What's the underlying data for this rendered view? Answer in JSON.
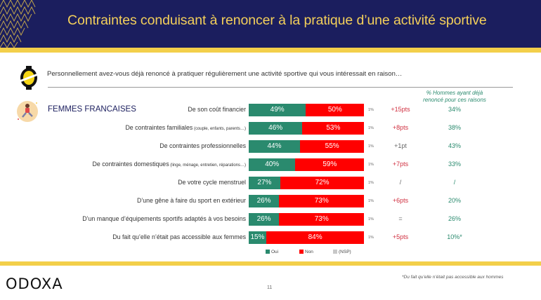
{
  "header": {
    "title": "Contraintes conduisant à renoncer à la pratique d’une activité sportive",
    "pattern_icon": "herringbone-pattern"
  },
  "question": {
    "icon": "odoxa-logo-icon",
    "text": "Personnellement avez-vous déjà renoncé à pratiquer régulièrement une activité sportive qui vous intéressait en raison…"
  },
  "group": {
    "icon": "woman-running-icon",
    "title": "FEMMES FRANCAISES"
  },
  "men_column_header": {
    "line1": "% Hommes ayant déjà",
    "line2": "renoncé pour ces raisons"
  },
  "colors": {
    "oui": "#2a8a6e",
    "non": "#ff0000",
    "nsp": "#c8c8c8",
    "diff_positive": "#d03040",
    "diff_neutral": "#666666",
    "men": "#2a8a6e",
    "navy": "#1b1e5e",
    "gold": "#f3cf4a"
  },
  "chart_data": {
    "type": "bar",
    "orientation": "horizontal-stacked",
    "title": "Contraintes conduisant à renoncer à la pratique d’une activité sportive",
    "subtitle": "FEMMES FRANCAISES",
    "categories": [
      {
        "main": "De son coût financier",
        "detail": ""
      },
      {
        "main": "De contraintes familiales",
        "detail": "(couple, enfants, parents…)"
      },
      {
        "main": "De contraintes professionnelles",
        "detail": ""
      },
      {
        "main": "De contraintes domestiques",
        "detail": "(linge, ménage, entretien, réparations…)"
      },
      {
        "main": "De votre cycle menstruel",
        "detail": ""
      },
      {
        "main": "D’une gêne à faire du sport en extérieur",
        "detail": ""
      },
      {
        "main": "D’un manque d’équipements sportifs adaptés à vos besoins",
        "detail": ""
      },
      {
        "main": "Du fait qu’elle n’était pas accessible aux femmes",
        "detail": ""
      }
    ],
    "series": [
      {
        "name": "Oui",
        "values": [
          49,
          46,
          44,
          40,
          27,
          26,
          26,
          15
        ],
        "labels": [
          "49%",
          "46%",
          "44%",
          "40%",
          "27%",
          "26%",
          "26%",
          "15%"
        ]
      },
      {
        "name": "Non",
        "values": [
          50,
          53,
          55,
          59,
          72,
          73,
          73,
          84
        ],
        "labels": [
          "50%",
          "53%",
          "55%",
          "59%",
          "72%",
          "73%",
          "73%",
          "84%"
        ]
      },
      {
        "name": "(NSP)",
        "values": [
          1,
          1,
          1,
          1,
          1,
          1,
          1,
          1
        ],
        "labels": [
          "1%",
          "1%",
          "1%",
          "1%",
          "1%",
          "1%",
          "1%",
          "1%"
        ]
      }
    ],
    "diff_vs_men": [
      "+15pts",
      "+8pts",
      "+1pt",
      "+7pts",
      "/",
      "+6pts",
      "=",
      "+5pts"
    ],
    "diff_highlight": [
      true,
      true,
      false,
      true,
      false,
      true,
      false,
      true
    ],
    "men_values": [
      "34%",
      "38%",
      "43%",
      "33%",
      "/",
      "20%",
      "26%",
      "10%*"
    ],
    "xlim": [
      0,
      100
    ],
    "legend": [
      "Oui",
      "Non",
      "(NSP)"
    ],
    "legend_position": "bottom"
  },
  "footer": {
    "logo": "ODOXA",
    "page_number": "11",
    "footnote": "*Du fait qu’elle n’était pas accessible aux hommes"
  }
}
